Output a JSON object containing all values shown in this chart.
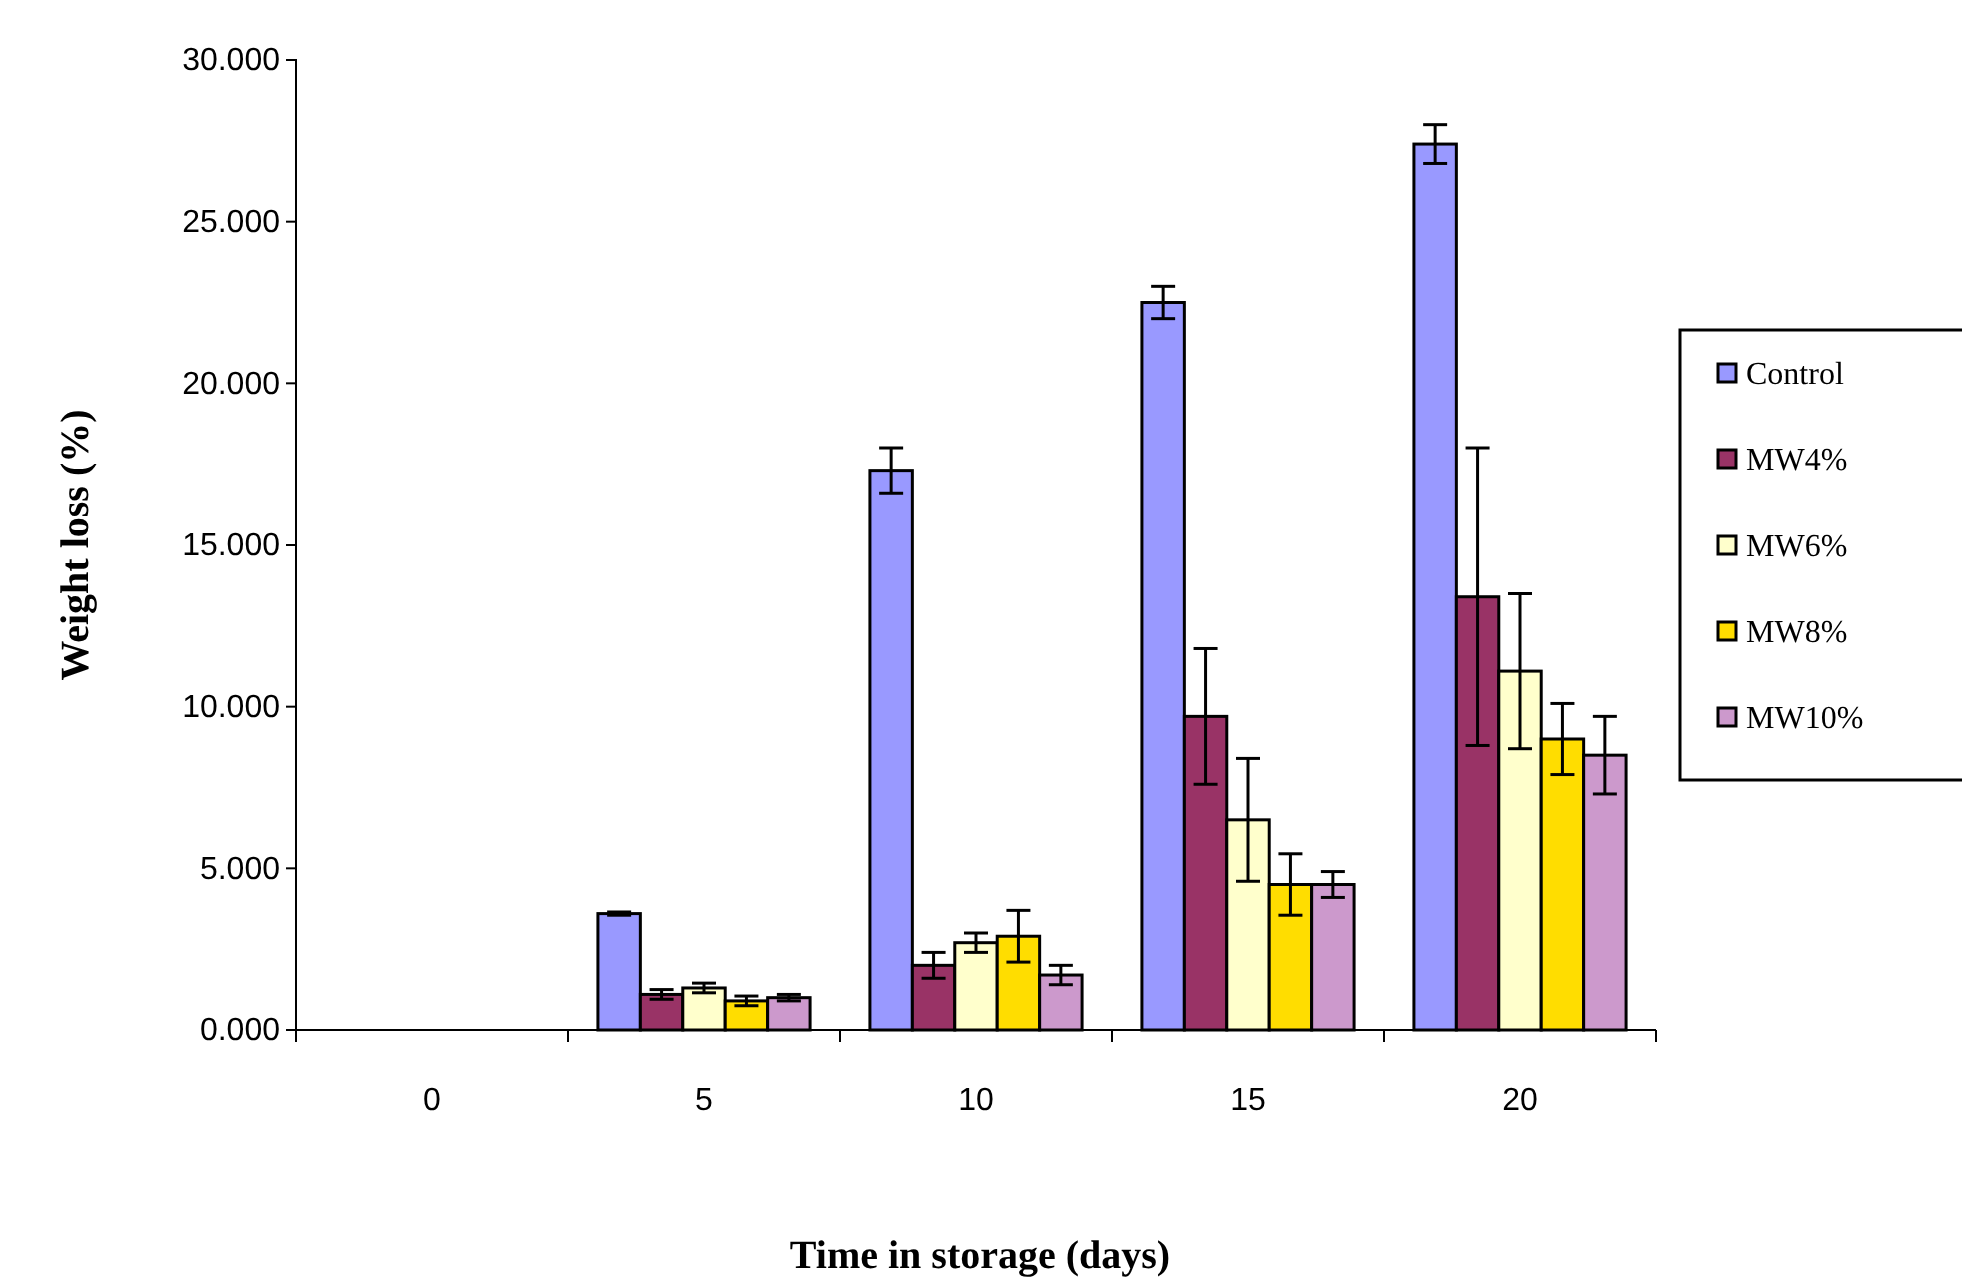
{
  "chart_data": {
    "type": "bar",
    "xlabel": "Time in storage (days)",
    "ylabel": "Weight loss (%)",
    "categories": [
      "0",
      "5",
      "10",
      "15",
      "20"
    ],
    "series": [
      {
        "name": "Control",
        "color": "#9999ff",
        "values": [
          0,
          3.6,
          17.3,
          22.5,
          27.4
        ],
        "errors": [
          null,
          0.05,
          0.7,
          0.5,
          0.6
        ]
      },
      {
        "name": "MW4%",
        "color": "#993366",
        "values": [
          0,
          1.1,
          2.0,
          9.7,
          13.4
        ],
        "errors": [
          null,
          0.15,
          0.4,
          2.1,
          4.6
        ]
      },
      {
        "name": "MW6%",
        "color": "#ffffcc",
        "values": [
          0,
          1.3,
          2.7,
          6.5,
          11.1
        ],
        "errors": [
          null,
          0.15,
          0.3,
          1.9,
          2.4
        ]
      },
      {
        "name": "MW8%",
        "color": "#ffdd00",
        "values": [
          0,
          0.9,
          2.9,
          4.5,
          9.0
        ],
        "errors": [
          null,
          0.15,
          0.8,
          0.95,
          1.1
        ]
      },
      {
        "name": "MW10%",
        "color": "#cc99cc",
        "values": [
          0,
          1.0,
          1.7,
          4.5,
          8.5
        ],
        "errors": [
          null,
          0.1,
          0.3,
          0.4,
          1.2
        ]
      }
    ],
    "ylim": [
      0,
      30
    ],
    "yticks": [
      {
        "value": 0,
        "label": "0.000"
      },
      {
        "value": 5,
        "label": "5.000"
      },
      {
        "value": 10,
        "label": "10.000"
      },
      {
        "value": 15,
        "label": "15.000"
      },
      {
        "value": 20,
        "label": "20.000"
      },
      {
        "value": 25,
        "label": "25.000"
      },
      {
        "value": 30,
        "label": "30.000"
      }
    ],
    "grid": false,
    "legend": "right"
  }
}
